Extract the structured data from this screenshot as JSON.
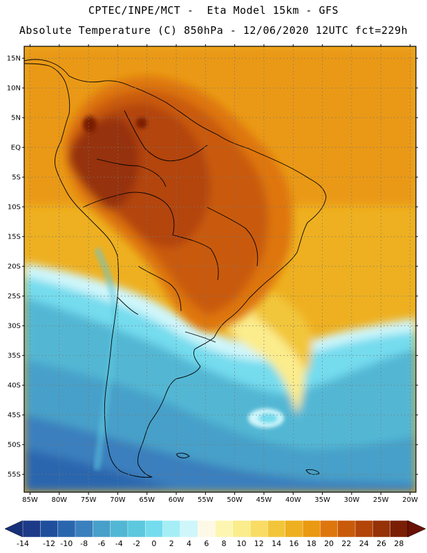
{
  "header": {
    "line1": "CPTEC/INPE/MCT -  Eta Model 15km - GFS",
    "line2": "Absolute Temperature (C) 850hPa - 12/06/2020 12UTC fct=229h"
  },
  "chart_data": {
    "type": "heatmap",
    "title": "Absolute Temperature (C) 850hPa - 12/06/2020 12UTC fct=229h",
    "subtitle": "CPTEC/INPE/MCT -  Eta Model 15km - GFS",
    "variable": "Absolute Temperature (C) 850hPa",
    "x_axis": {
      "min": -86,
      "max": -19,
      "ticks": [
        -85,
        -80,
        -75,
        -70,
        -65,
        -60,
        -55,
        -50,
        -45,
        -40,
        -35,
        -30,
        -25,
        -20
      ],
      "tick_labels": [
        "85W",
        "80W",
        "75W",
        "70W",
        "65W",
        "60W",
        "55W",
        "50W",
        "45W",
        "40W",
        "35W",
        "30W",
        "25W",
        "20W"
      ]
    },
    "y_axis": {
      "min": -58,
      "max": 17,
      "ticks": [
        15,
        10,
        5,
        0,
        -5,
        -10,
        -15,
        -20,
        -25,
        -30,
        -35,
        -40,
        -45,
        -50,
        -55
      ],
      "tick_labels": [
        "15N",
        "10N",
        "5N",
        "EQ",
        "5S",
        "10S",
        "15S",
        "20S",
        "25S",
        "30S",
        "35S",
        "40S",
        "45S",
        "50S",
        "55S"
      ]
    },
    "colorbar": {
      "levels": [
        -14,
        -12,
        -10,
        -8,
        -6,
        -4,
        -2,
        0,
        2,
        4,
        6,
        8,
        10,
        12,
        14,
        16,
        18,
        20,
        22,
        24,
        26,
        28
      ],
      "labels": [
        "-14",
        "-12",
        "-10",
        "-8",
        "-6",
        "-4",
        "-2",
        "0",
        "2",
        "4",
        "6",
        "8",
        "10",
        "12",
        "14",
        "16",
        "18",
        "20",
        "22",
        "24",
        "26",
        "28"
      ],
      "colors": [
        "#1c3a88",
        "#1f4f9c",
        "#2a66ae",
        "#3a7fbe",
        "#47a0c9",
        "#52b7d4",
        "#5dc8de",
        "#74dcee",
        "#a5eef6",
        "#cff6fb",
        "#fef9e6",
        "#fdf6b2",
        "#fbec8c",
        "#f8dc64",
        "#f2c63a",
        "#eeb020",
        "#ea9912",
        "#de760e",
        "#c95a0a",
        "#b34508",
        "#963207",
        "#7a1f06"
      ],
      "under_color": "#16307a",
      "over_color": "#6a1004"
    },
    "annotations": []
  }
}
